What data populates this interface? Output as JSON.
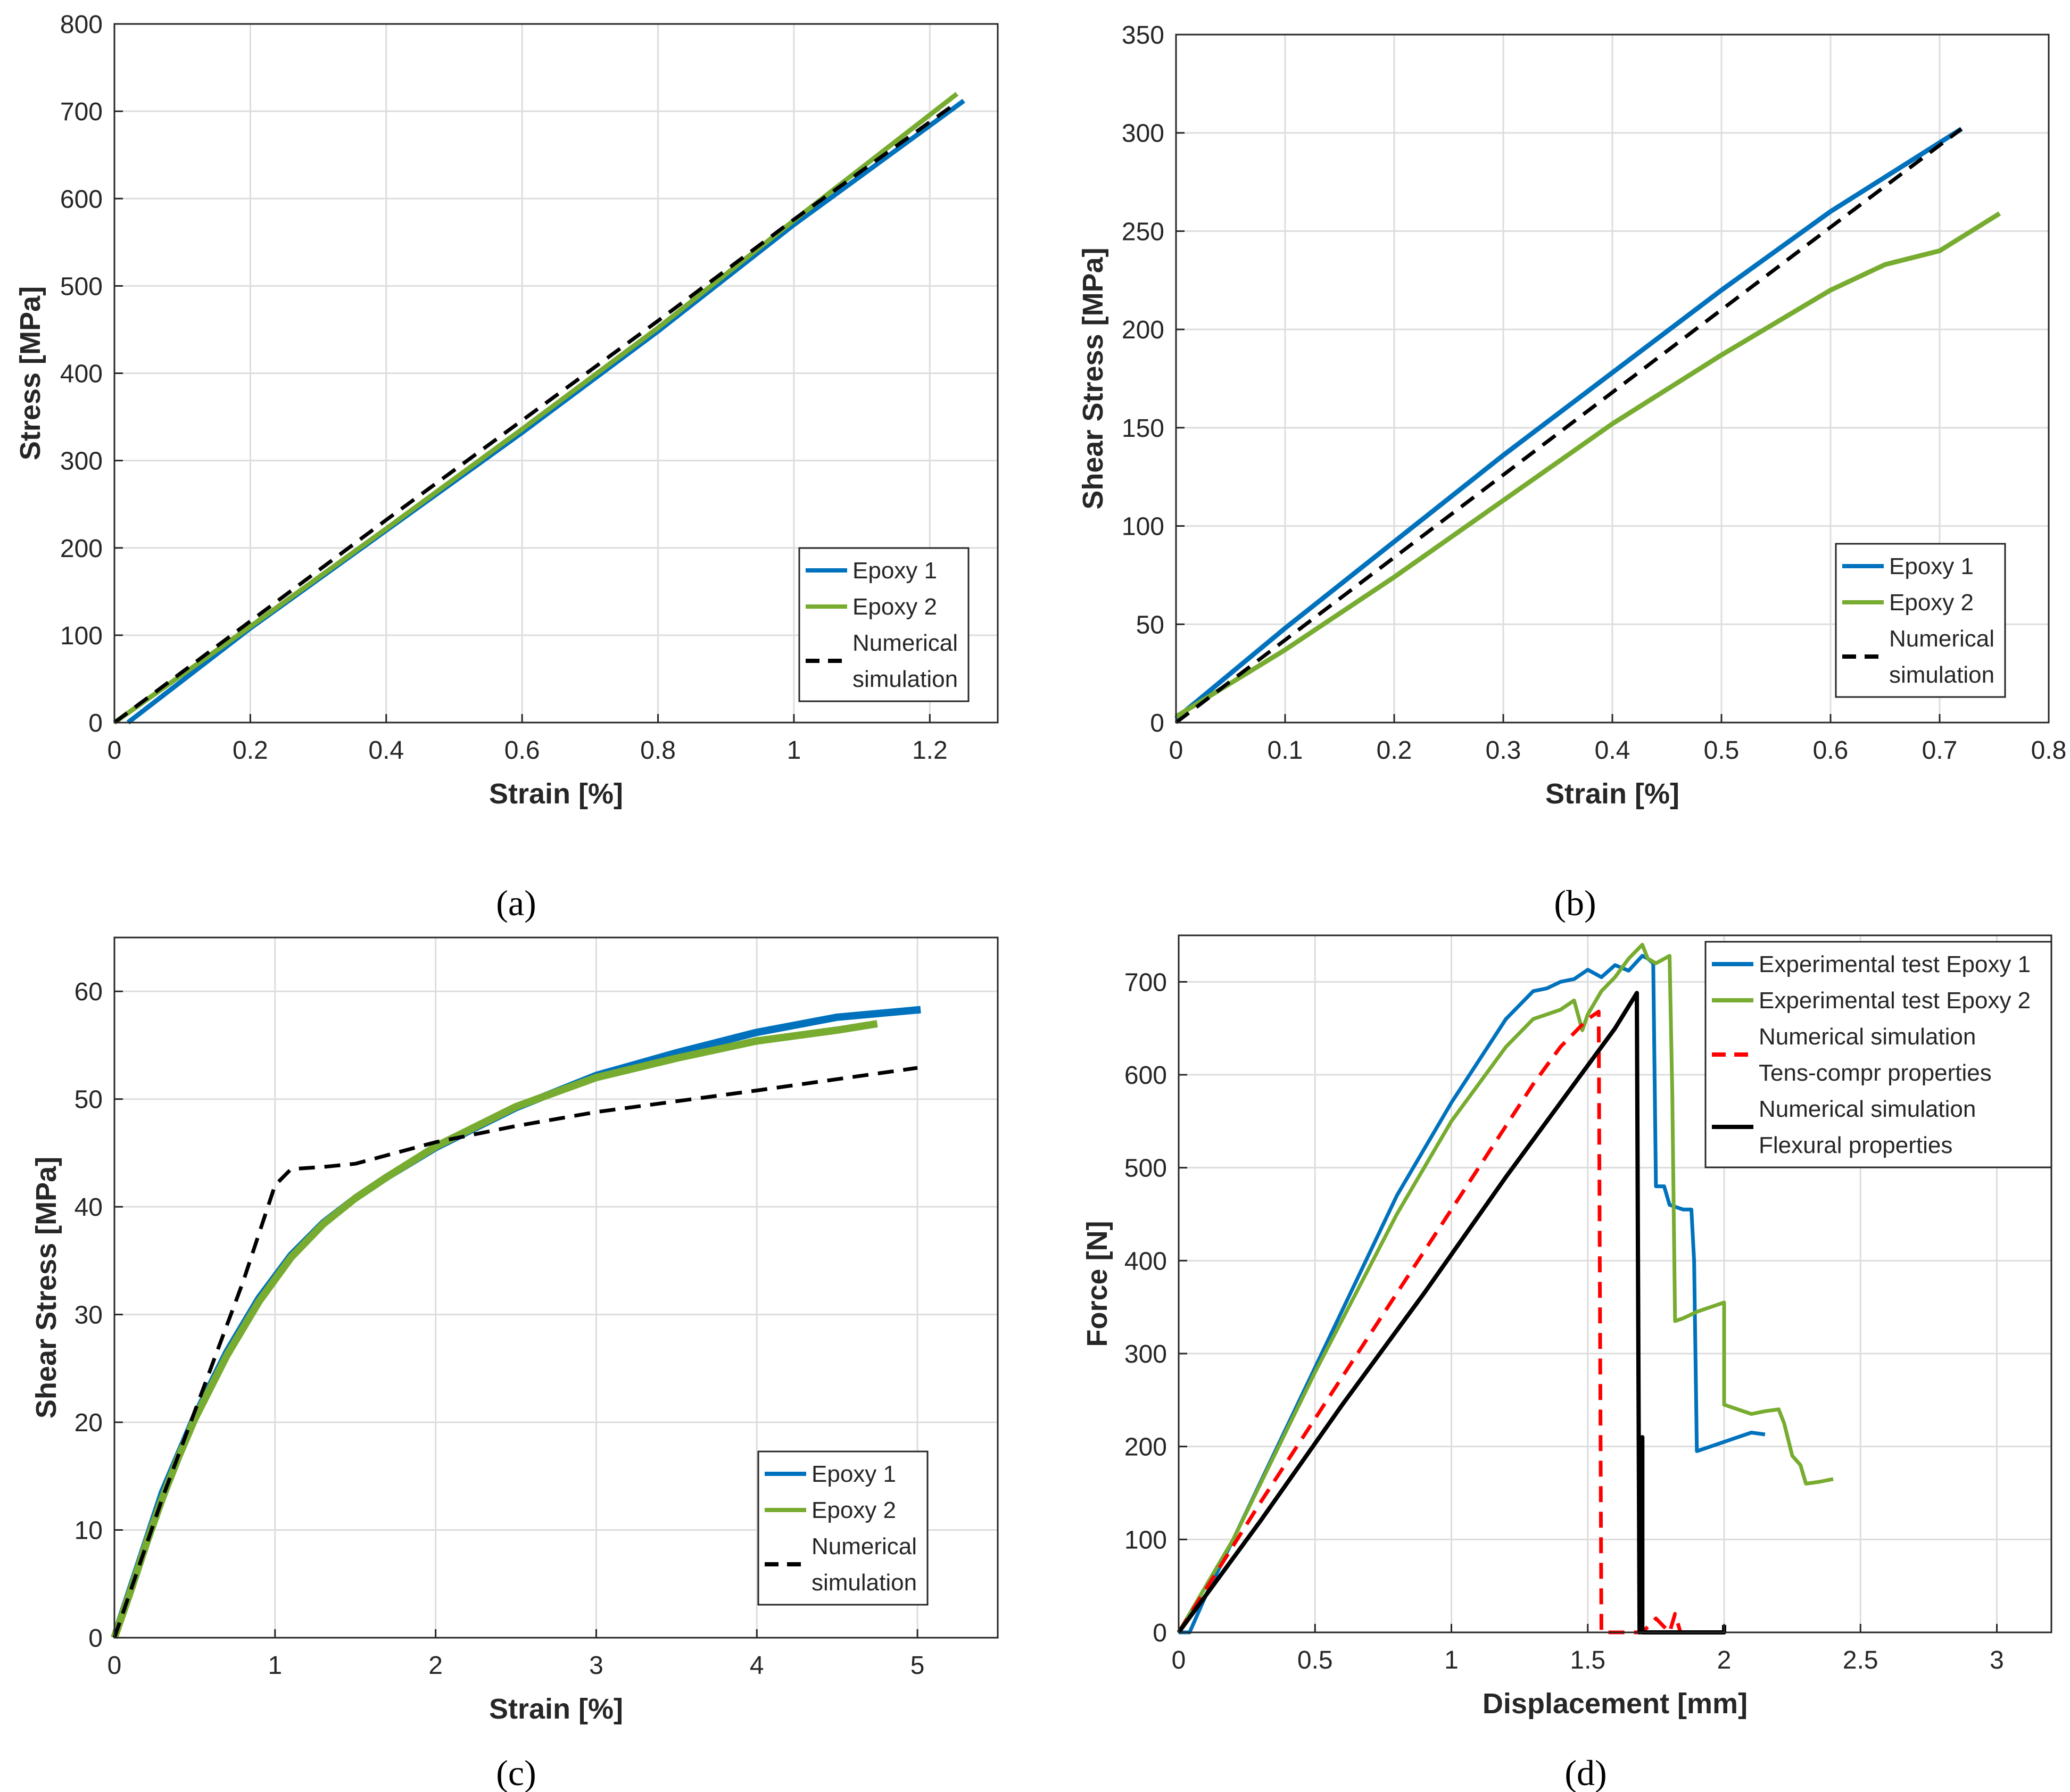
{
  "figure": {
    "panel_labels": [
      "(a)",
      "(b)",
      "(c)",
      "(d)"
    ]
  },
  "colors": {
    "epoxy1": "#0072BD",
    "epoxy2": "#77AC30",
    "numerical": "#000000",
    "tens_compr": "#FF0000",
    "flexural": "#000000",
    "grid": "#DDDDDD",
    "axis": "#262626"
  },
  "chart_data": [
    {
      "type": "line",
      "panel": "(a)",
      "xlabel": "Strain [%]",
      "ylabel": "Stress [MPa]",
      "xlim": [
        0,
        1.3
      ],
      "ylim": [
        0,
        800
      ],
      "xticks": [
        0,
        0.2,
        0.4,
        0.6,
        0.8,
        1,
        1.2
      ],
      "xtick_labels": [
        "0",
        "0.2",
        "0.4",
        "0.6",
        "0.8",
        "1",
        "1.2"
      ],
      "yticks": [
        0,
        100,
        200,
        300,
        400,
        500,
        600,
        700,
        800
      ],
      "ytick_labels": [
        "0",
        "100",
        "200",
        "300",
        "400",
        "500",
        "600",
        "700",
        "800"
      ],
      "grid": true,
      "legend_position": "bottom-right",
      "legend": [
        [
          "Epoxy 1"
        ],
        [
          "Epoxy 2"
        ],
        [
          "Numerical",
          "simulation"
        ]
      ],
      "series": [
        {
          "name": "Epoxy 1",
          "color": "#0072BD",
          "dash": "solid",
          "width": 9,
          "x": [
            0.02,
            0.2,
            0.4,
            0.6,
            0.8,
            1.0,
            1.25
          ],
          "y": [
            0,
            108,
            220,
            332,
            448,
            570,
            712
          ]
        },
        {
          "name": "Epoxy 2",
          "color": "#77AC30",
          "dash": "solid",
          "width": 9,
          "x": [
            0.0,
            0.2,
            0.4,
            0.6,
            0.8,
            1.0,
            1.24
          ],
          "y": [
            0,
            110,
            222,
            336,
            452,
            575,
            720
          ]
        },
        {
          "name": "Numerical simulation",
          "color": "#000000",
          "dash": "dashed",
          "width": 7,
          "x": [
            0.0,
            0.2,
            0.4,
            0.6,
            0.8,
            1.0,
            1.24
          ],
          "y": [
            0,
            116,
            232,
            346,
            460,
            576,
            710
          ]
        }
      ]
    },
    {
      "type": "line",
      "panel": "(b)",
      "xlabel": "Strain [%]",
      "ylabel": "Shear Stress [MPa]",
      "xlim": [
        0,
        0.8
      ],
      "ylim": [
        0,
        350
      ],
      "xticks": [
        0,
        0.1,
        0.2,
        0.3,
        0.4,
        0.5,
        0.6,
        0.7,
        0.8
      ],
      "xtick_labels": [
        "0",
        "0.1",
        "0.2",
        "0.3",
        "0.4",
        "0.5",
        "0.6",
        "0.7",
        "0.8"
      ],
      "yticks": [
        0,
        50,
        100,
        150,
        200,
        250,
        300,
        350
      ],
      "ytick_labels": [
        "0",
        "50",
        "100",
        "150",
        "200",
        "250",
        "300",
        "350"
      ],
      "grid": true,
      "legend_position": "bottom-right",
      "legend": [
        [
          "Epoxy 1"
        ],
        [
          "Epoxy 2"
        ],
        [
          "Numerical",
          "simulation"
        ]
      ],
      "series": [
        {
          "name": "Epoxy 1",
          "color": "#0072BD",
          "dash": "solid",
          "width": 9,
          "x": [
            0.0,
            0.1,
            0.2,
            0.3,
            0.4,
            0.5,
            0.6,
            0.72
          ],
          "y": [
            2,
            48,
            92,
            136,
            178,
            220,
            260,
            302
          ]
        },
        {
          "name": "Epoxy 2",
          "color": "#77AC30",
          "dash": "solid",
          "width": 9,
          "x": [
            0.0,
            0.05,
            0.1,
            0.2,
            0.3,
            0.4,
            0.5,
            0.6,
            0.65,
            0.7,
            0.755
          ],
          "y": [
            3,
            20,
            37,
            74,
            113,
            152,
            187,
            220,
            233,
            240,
            259
          ]
        },
        {
          "name": "Numerical simulation",
          "color": "#000000",
          "dash": "dashed",
          "width": 7,
          "x": [
            0.0,
            0.2,
            0.4,
            0.6,
            0.72
          ],
          "y": [
            0,
            84,
            168,
            252,
            302
          ]
        }
      ]
    },
    {
      "type": "line",
      "panel": "(c)",
      "xlabel": "Strain [%]",
      "ylabel": "Shear Stress [MPa]",
      "xlim": [
        0,
        5.5
      ],
      "ylim": [
        0,
        65
      ],
      "xticks": [
        0,
        1,
        2,
        3,
        4,
        5
      ],
      "xtick_labels": [
        "0",
        "1",
        "2",
        "3",
        "4",
        "5"
      ],
      "yticks": [
        0,
        10,
        20,
        30,
        40,
        50,
        60
      ],
      "ytick_labels": [
        "0",
        "10",
        "20",
        "30",
        "40",
        "50",
        "60"
      ],
      "grid": true,
      "legend_position": "bottom-right",
      "legend": [
        [
          "Epoxy 1"
        ],
        [
          "Epoxy 2"
        ],
        [
          "Numerical",
          "simulation"
        ]
      ],
      "series": [
        {
          "name": "Epoxy 1",
          "color": "#0072BD",
          "dash": "solid",
          "width": 14,
          "x": [
            0.0,
            0.1,
            0.2,
            0.3,
            0.4,
            0.5,
            0.7,
            0.9,
            1.1,
            1.3,
            1.5,
            1.7,
            2.0,
            2.5,
            3.0,
            3.5,
            4.0,
            4.5,
            5.02
          ],
          "y": [
            0,
            4.5,
            9,
            13.5,
            17,
            20.5,
            26.5,
            31.5,
            35.5,
            38.5,
            40.8,
            42.8,
            45.5,
            49.2,
            52.2,
            54.3,
            56.2,
            57.6,
            58.3
          ]
        },
        {
          "name": "Epoxy 2",
          "color": "#77AC30",
          "dash": "solid",
          "width": 14,
          "x": [
            0.0,
            0.1,
            0.2,
            0.3,
            0.4,
            0.5,
            0.7,
            0.9,
            1.1,
            1.3,
            1.5,
            1.7,
            2.0,
            2.5,
            3.0,
            3.5,
            4.0,
            4.5,
            4.75
          ],
          "y": [
            0,
            4.3,
            8.8,
            13,
            16.8,
            20.3,
            26.2,
            31.2,
            35.3,
            38.4,
            40.8,
            42.8,
            45.6,
            49.3,
            52,
            53.8,
            55.4,
            56.4,
            57
          ]
        },
        {
          "name": "Numerical simulation",
          "color": "#000000",
          "dash": "dashed",
          "width": 7,
          "x": [
            0.0,
            0.3,
            0.6,
            0.8,
            1.0,
            1.1,
            1.3,
            1.5,
            2.0,
            2.5,
            3.0,
            4.0,
            5.0
          ],
          "y": [
            0,
            13,
            25,
            33,
            42,
            43.5,
            43.7,
            44,
            46,
            47.5,
            48.8,
            50.8,
            52.9
          ]
        }
      ]
    },
    {
      "type": "line",
      "panel": "(d)",
      "xlabel": "Displacement [mm]",
      "ylabel": "Force [N]",
      "xlim": [
        0,
        3.2
      ],
      "ylim": [
        0,
        750
      ],
      "xticks": [
        0,
        0.5,
        1,
        1.5,
        2,
        2.5,
        3
      ],
      "xtick_labels": [
        "0",
        "0.5",
        "1",
        "1.5",
        "2",
        "2.5",
        "3"
      ],
      "yticks": [
        0,
        100,
        200,
        300,
        400,
        500,
        600,
        700
      ],
      "ytick_labels": [
        "0",
        "100",
        "200",
        "300",
        "400",
        "500",
        "600",
        "700"
      ],
      "grid": true,
      "legend_position": "top-right",
      "legend": [
        [
          "Experimental test Epoxy 1"
        ],
        [
          "Experimental test Epoxy 2"
        ],
        [
          "Numerical simulation",
          "Tens-compr properties"
        ],
        [
          "Numerical simulation",
          "Flexural properties"
        ]
      ],
      "series": [
        {
          "name": "Experimental test Epoxy 1",
          "color": "#0072BD",
          "dash": "solid",
          "width": 7,
          "x": [
            0.0,
            0.04,
            0.1,
            0.2,
            0.5,
            0.8,
            1.0,
            1.2,
            1.3,
            1.35,
            1.4,
            1.45,
            1.5,
            1.55,
            1.6,
            1.65,
            1.7,
            1.72,
            1.74,
            1.75,
            1.78,
            1.8,
            1.85,
            1.88,
            1.89,
            1.9,
            1.95,
            2.0,
            2.05,
            2.1,
            2.15
          ],
          "y": [
            0,
            0,
            40,
            100,
            285,
            470,
            570,
            660,
            690,
            693,
            700,
            703,
            713,
            705,
            718,
            712,
            728,
            725,
            720,
            480,
            480,
            460,
            455,
            455,
            400,
            195,
            200,
            205,
            210,
            215,
            213
          ]
        },
        {
          "name": "Experimental test Epoxy 2",
          "color": "#77AC30",
          "dash": "solid",
          "width": 7,
          "x": [
            0.0,
            0.2,
            0.5,
            0.8,
            1.0,
            1.2,
            1.3,
            1.35,
            1.4,
            1.45,
            1.48,
            1.5,
            1.55,
            1.6,
            1.65,
            1.7,
            1.72,
            1.75,
            1.8,
            1.81,
            1.82,
            1.85,
            1.9,
            1.95,
            2.0,
            2.0,
            2.05,
            2.1,
            2.15,
            2.2,
            2.22,
            2.25,
            2.28,
            2.3,
            2.35,
            2.4
          ],
          "y": [
            0,
            100,
            280,
            450,
            550,
            630,
            660,
            665,
            670,
            680,
            648,
            665,
            690,
            705,
            725,
            740,
            725,
            720,
            728,
            580,
            335,
            338,
            345,
            350,
            355,
            245,
            240,
            235,
            238,
            240,
            225,
            190,
            180,
            160,
            162,
            165
          ]
        },
        {
          "name": "Numerical simulation Tens-compr properties",
          "color": "#FF0000",
          "dash": "dashed",
          "width": 7,
          "x": [
            0.0,
            0.3,
            0.6,
            0.9,
            1.1,
            1.2,
            1.3,
            1.4,
            1.5,
            1.54,
            1.55,
            1.56,
            1.6,
            1.7,
            1.75,
            1.8,
            1.82,
            1.84
          ],
          "y": [
            0,
            140,
            275,
            410,
            500,
            545,
            590,
            630,
            660,
            668,
            0,
            0,
            0,
            0,
            15,
            0,
            20,
            0
          ]
        },
        {
          "name": "Numerical simulation Flexural properties",
          "color": "#000000",
          "dash": "solid",
          "width": 8,
          "x": [
            0.0,
            0.3,
            0.6,
            0.9,
            1.2,
            1.5,
            1.6,
            1.68,
            1.69,
            1.7,
            1.7,
            1.75,
            1.9,
            2.0,
            2.0
          ],
          "y": [
            0,
            120,
            245,
            365,
            490,
            610,
            650,
            688,
            0,
            210,
            0,
            0,
            0,
            0,
            8
          ]
        }
      ]
    }
  ]
}
